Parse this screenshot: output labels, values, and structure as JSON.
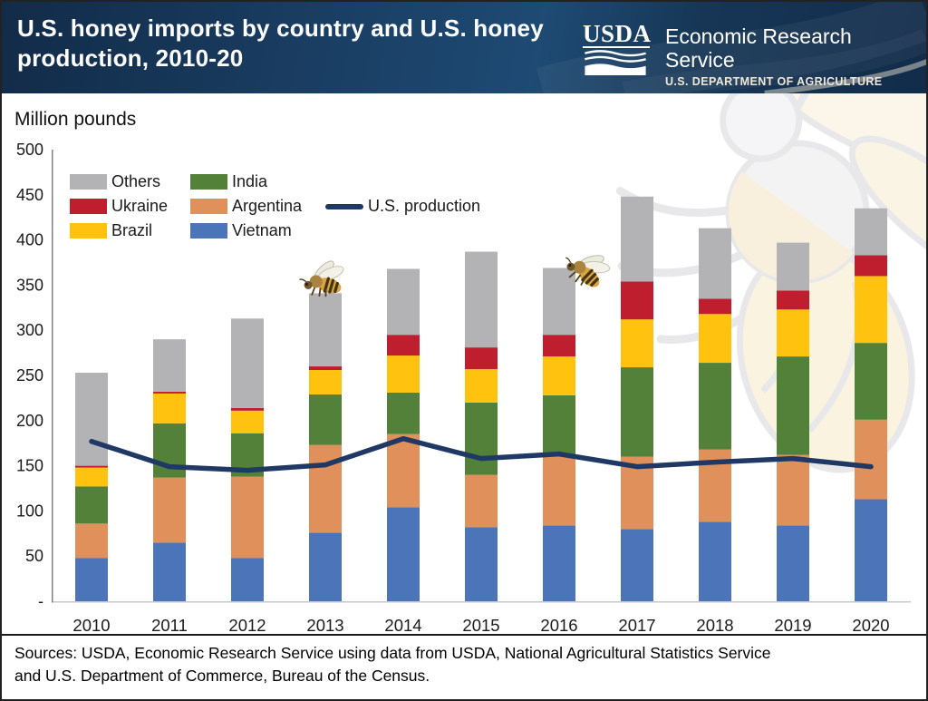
{
  "header": {
    "title_line1": "U.S. honey imports by country and U.S. honey",
    "title_line2": "production, 2010-20",
    "logo_text": "USDA",
    "agency_name": "Economic Research Service",
    "agency_sub": "U.S. DEPARTMENT OF AGRICULTURE"
  },
  "chart_data": {
    "type": "bar",
    "stacked": true,
    "title": "U.S. honey imports by country and U.S. honey production, 2010-20",
    "ylabel": "Million pounds",
    "ylim": [
      0,
      500
    ],
    "ytick_step": 50,
    "zero_tick_label": "-",
    "grid": false,
    "categories": [
      "2010",
      "2011",
      "2012",
      "2013",
      "2014",
      "2015",
      "2016",
      "2017",
      "2018",
      "2019",
      "2020"
    ],
    "series": [
      {
        "name": "Vietnam",
        "color": "#4C74B9",
        "values": [
          48,
          65,
          48,
          76,
          104,
          82,
          84,
          80,
          88,
          84,
          113
        ]
      },
      {
        "name": "Argentina",
        "color": "#E0905A",
        "values": [
          38,
          72,
          90,
          97,
          81,
          58,
          78,
          80,
          80,
          78,
          88
        ]
      },
      {
        "name": "India",
        "color": "#53813A",
        "values": [
          41,
          60,
          48,
          56,
          46,
          80,
          66,
          99,
          96,
          109,
          85
        ]
      },
      {
        "name": "Brazil",
        "color": "#FFC20E",
        "values": [
          21,
          33,
          25,
          27,
          41,
          37,
          43,
          53,
          54,
          52,
          74
        ]
      },
      {
        "name": "Ukraine",
        "color": "#BE1E2D",
        "values": [
          2,
          2,
          3,
          4,
          23,
          24,
          24,
          42,
          17,
          21,
          23
        ]
      },
      {
        "name": "Others",
        "color": "#B3B3B6",
        "values": [
          103,
          58,
          99,
          81,
          73,
          106,
          74,
          94,
          78,
          53,
          52
        ]
      }
    ],
    "totals": [
      253,
      290,
      313,
      341,
      368,
      387,
      369,
      448,
      413,
      397,
      435
    ],
    "line_series": {
      "name": "U.S. production",
      "color": "#1F3864",
      "values": [
        177,
        149,
        145,
        151,
        180,
        158,
        163,
        149,
        154,
        158,
        149
      ]
    },
    "legend": [
      {
        "label": "Others",
        "series": "Others"
      },
      {
        "label": "Ukraine",
        "series": "Ukraine"
      },
      {
        "label": "Brazil",
        "series": "Brazil"
      },
      {
        "label": "India",
        "series": "India"
      },
      {
        "label": "Argentina",
        "series": "Argentina"
      },
      {
        "label": "Vietnam",
        "series": "Vietnam"
      },
      {
        "label": "U.S. production",
        "series": "line"
      }
    ],
    "legend_position": "top-left"
  },
  "footer": {
    "line1": "Sources: USDA, Economic Research Service using data from USDA, National Agricultural Statistics Service",
    "line2": "and U.S. Department of Commerce, Bureau of the Census."
  }
}
